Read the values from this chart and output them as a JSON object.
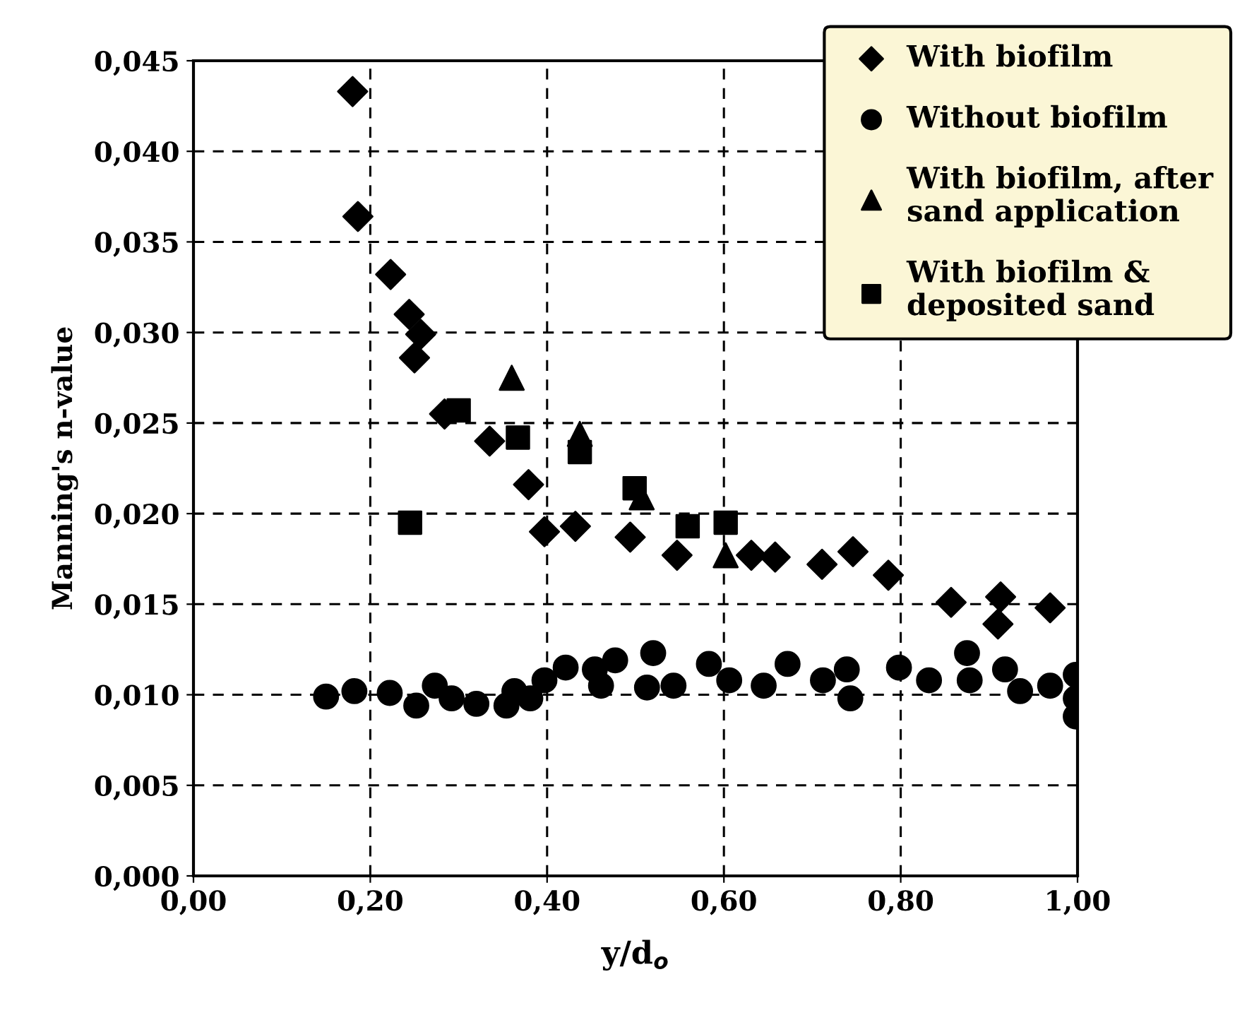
{
  "chart_data": {
    "type": "scatter",
    "xlabel": "y/d$_{o}$",
    "ylabel": "Manning's n-value",
    "xlim": [
      0,
      1
    ],
    "ylim": [
      0,
      0.045
    ],
    "xticks": [
      {
        "value": 0,
        "label": "0,00"
      },
      {
        "value": 0.2,
        "label": "0,20"
      },
      {
        "value": 0.4,
        "label": "0,40"
      },
      {
        "value": 0.6,
        "label": "0,60"
      },
      {
        "value": 0.8,
        "label": "0,80"
      },
      {
        "value": 1,
        "label": "1,00"
      }
    ],
    "yticks": [
      {
        "value": 0,
        "label": "0,000"
      },
      {
        "value": 0.005,
        "label": "0,005"
      },
      {
        "value": 0.01,
        "label": "0,010"
      },
      {
        "value": 0.015,
        "label": "0,015"
      },
      {
        "value": 0.02,
        "label": "0,020"
      },
      {
        "value": 0.025,
        "label": "0,025"
      },
      {
        "value": 0.03,
        "label": "0,030"
      },
      {
        "value": 0.035,
        "label": "0,035"
      },
      {
        "value": 0.04,
        "label": "0,040"
      },
      {
        "value": 0.045,
        "label": "0,045"
      }
    ],
    "grid": true,
    "legend": "top right",
    "series": [
      {
        "name": "With biofilm",
        "color": "#000000",
        "marker": "diamond",
        "x": [
          0.18,
          0.186,
          0.223,
          0.244,
          0.257,
          0.25,
          0.284,
          0.335,
          0.379,
          0.397,
          0.432,
          0.494,
          0.547,
          0.631,
          0.658,
          0.711,
          0.746,
          0.786,
          0.857,
          0.913,
          0.91,
          0.969
        ],
        "values": [
          0.0433,
          0.0364,
          0.0332,
          0.031,
          0.0299,
          0.0286,
          0.0255,
          0.024,
          0.0216,
          0.019,
          0.0193,
          0.0187,
          0.0177,
          0.0177,
          0.0176,
          0.0172,
          0.0179,
          0.0166,
          0.0151,
          0.0154,
          0.0139,
          0.0148
        ]
      },
      {
        "name": "Without biofilm",
        "color": "#000000",
        "marker": "circle",
        "x": [
          0.15,
          0.182,
          0.222,
          0.252,
          0.273,
          0.292,
          0.32,
          0.354,
          0.363,
          0.381,
          0.397,
          0.421,
          0.454,
          0.461,
          0.477,
          0.52,
          0.513,
          0.543,
          0.583,
          0.606,
          0.645,
          0.672,
          0.712,
          0.739,
          0.743,
          0.798,
          0.832,
          0.875,
          0.878,
          0.918,
          0.935,
          0.969,
          0.998,
          0.998,
          0.998
        ],
        "values": [
          0.0099,
          0.0102,
          0.0101,
          0.0094,
          0.0105,
          0.0098,
          0.0095,
          0.0094,
          0.0102,
          0.0098,
          0.0108,
          0.0115,
          0.0114,
          0.0105,
          0.0119,
          0.0123,
          0.0104,
          0.0105,
          0.0117,
          0.0108,
          0.0105,
          0.0117,
          0.0108,
          0.0114,
          0.0098,
          0.0115,
          0.0108,
          0.0123,
          0.0108,
          0.0114,
          0.0102,
          0.0105,
          0.0111,
          0.0098,
          0.0088
        ]
      },
      {
        "name": "With biofilm, after\nsand application",
        "color": "#000000",
        "marker": "triangle",
        "x": [
          0.36,
          0.437,
          0.507,
          0.602
        ],
        "values": [
          0.0275,
          0.0244,
          0.0209,
          0.0177
        ]
      },
      {
        "name": "With biofilm &\ndeposited sand",
        "color": "#000000",
        "marker": "square",
        "x": [
          0.3,
          0.367,
          0.245,
          0.437,
          0.499,
          0.559,
          0.602
        ],
        "values": [
          0.0257,
          0.0242,
          0.0195,
          0.0234,
          0.0214,
          0.0193,
          0.0195
        ]
      }
    ]
  }
}
